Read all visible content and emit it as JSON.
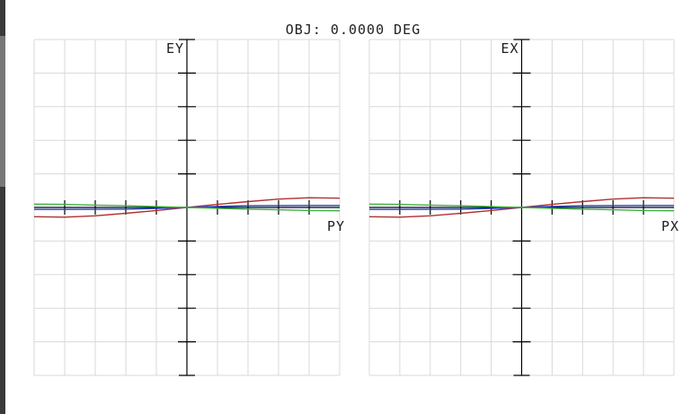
{
  "header": {
    "title": "OBJ: 0.0000 DEG"
  },
  "colors": {
    "grid": "#d9d9d9",
    "axis": "#000000",
    "red": "#b03030",
    "green": "#3cb043",
    "blue": "#2040c0"
  },
  "chart_data": [
    {
      "type": "line",
      "title": "OBJ: 0.0000 DEG",
      "xlabel": "PY",
      "ylabel": "EY",
      "xlim": [
        -1,
        1
      ],
      "ylim": [
        -1,
        1
      ],
      "grid": true,
      "series": [
        {
          "color": "#b03030",
          "x": [
            -1,
            -0.8,
            -0.6,
            -0.4,
            -0.2,
            0,
            0.2,
            0.4,
            0.6,
            0.8,
            1
          ],
          "y": [
            -0.055,
            -0.058,
            -0.05,
            -0.035,
            -0.018,
            0,
            0.018,
            0.035,
            0.05,
            0.058,
            0.055
          ]
        },
        {
          "color": "#2040c0",
          "x": [
            -1,
            -0.8,
            -0.6,
            -0.4,
            -0.2,
            0,
            0.2,
            0.4,
            0.6,
            0.8,
            1
          ],
          "y": [
            -0.012,
            -0.012,
            -0.011,
            -0.01,
            -0.006,
            0,
            0.006,
            0.01,
            0.011,
            0.012,
            0.012
          ]
        },
        {
          "color": "#3cb043",
          "x": [
            -1,
            -0.8,
            -0.6,
            -0.4,
            -0.2,
            0,
            0.2,
            0.4,
            0.6,
            0.8,
            1
          ],
          "y": [
            0.02,
            0.018,
            0.014,
            0.01,
            0.005,
            0,
            -0.005,
            -0.01,
            -0.014,
            -0.018,
            -0.02
          ]
        }
      ]
    },
    {
      "type": "line",
      "xlabel": "PX",
      "ylabel": "EX",
      "xlim": [
        -1,
        1
      ],
      "ylim": [
        -1,
        1
      ],
      "grid": true,
      "series": [
        {
          "color": "#b03030",
          "x": [
            -1,
            -0.8,
            -0.6,
            -0.4,
            -0.2,
            0,
            0.2,
            0.4,
            0.6,
            0.8,
            1
          ],
          "y": [
            -0.055,
            -0.058,
            -0.05,
            -0.035,
            -0.018,
            0,
            0.018,
            0.035,
            0.05,
            0.058,
            0.055
          ]
        },
        {
          "color": "#2040c0",
          "x": [
            -1,
            -0.8,
            -0.6,
            -0.4,
            -0.2,
            0,
            0.2,
            0.4,
            0.6,
            0.8,
            1
          ],
          "y": [
            -0.012,
            -0.012,
            -0.011,
            -0.01,
            -0.006,
            0,
            0.006,
            0.01,
            0.011,
            0.012,
            0.012
          ]
        },
        {
          "color": "#3cb043",
          "x": [
            -1,
            -0.8,
            -0.6,
            -0.4,
            -0.2,
            0,
            0.2,
            0.4,
            0.6,
            0.8,
            1
          ],
          "y": [
            0.02,
            0.018,
            0.014,
            0.01,
            0.005,
            0,
            -0.005,
            -0.01,
            -0.014,
            -0.018,
            -0.02
          ]
        }
      ]
    }
  ]
}
